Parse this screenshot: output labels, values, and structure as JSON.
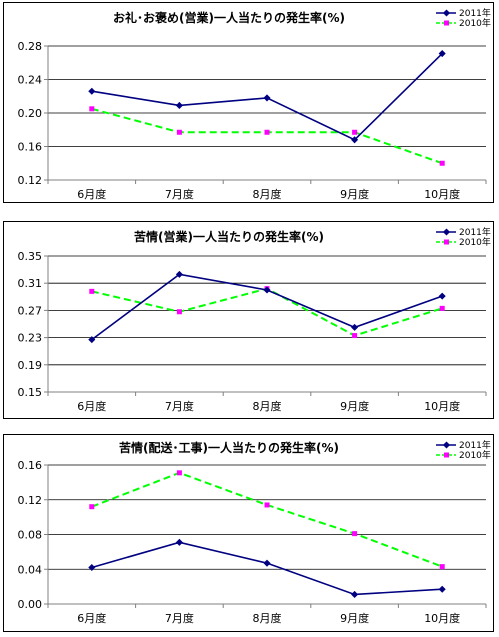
{
  "chart_data": [
    {
      "type": "line",
      "title": "お礼･お褒め(営業)一人当たりの発生率(%)",
      "categories": [
        "6月度",
        "7月度",
        "8月度",
        "9月度",
        "10月度"
      ],
      "ylim": [
        0.12,
        0.28
      ],
      "yticks": [
        "0.12",
        "0.16",
        "0.20",
        "0.24",
        "0.28"
      ],
      "ytick_values": [
        0.12,
        0.16,
        0.2,
        0.24,
        0.28
      ],
      "grid": true,
      "legend": "top-right",
      "series": [
        {
          "name": "2011年",
          "values": [
            0.226,
            0.209,
            0.218,
            0.168,
            0.271
          ],
          "color": "#000080",
          "style": "solid"
        },
        {
          "name": "2010年",
          "values": [
            0.205,
            0.177,
            0.177,
            0.177,
            0.14
          ],
          "color": "#00ff00",
          "marker_color": "#ff00ff",
          "style": "dashed"
        }
      ]
    },
    {
      "type": "line",
      "title": "苦情(営業)一人当たりの発生率(%)",
      "categories": [
        "6月度",
        "7月度",
        "8月度",
        "9月度",
        "10月度"
      ],
      "ylim": [
        0.15,
        0.35
      ],
      "yticks": [
        "0.15",
        "0.19",
        "0.23",
        "0.27",
        "0.31",
        "0.35"
      ],
      "ytick_values": [
        0.15,
        0.19,
        0.23,
        0.27,
        0.31,
        0.35
      ],
      "grid": true,
      "legend": "top-right",
      "series": [
        {
          "name": "2011年",
          "values": [
            0.227,
            0.323,
            0.3,
            0.245,
            0.291
          ],
          "color": "#000080",
          "style": "solid"
        },
        {
          "name": "2010年",
          "values": [
            0.298,
            0.268,
            0.302,
            0.233,
            0.273
          ],
          "color": "#00ff00",
          "marker_color": "#ff00ff",
          "style": "dashed"
        }
      ]
    },
    {
      "type": "line",
      "title": "苦情(配送･工事)一人当たりの発生率(%)",
      "categories": [
        "6月度",
        "7月度",
        "8月度",
        "9月度",
        "10月度"
      ],
      "ylim": [
        0.0,
        0.16
      ],
      "yticks": [
        "0.00",
        "0.04",
        "0.08",
        "0.12",
        "0.16"
      ],
      "ytick_values": [
        0.0,
        0.04,
        0.08,
        0.12,
        0.16
      ],
      "grid": true,
      "legend": "top-right",
      "series": [
        {
          "name": "2011年",
          "values": [
            0.042,
            0.071,
            0.047,
            0.011,
            0.017
          ],
          "color": "#000080",
          "style": "solid"
        },
        {
          "name": "2010年",
          "values": [
            0.112,
            0.151,
            0.114,
            0.081,
            0.043
          ],
          "color": "#00ff00",
          "marker_color": "#ff00ff",
          "style": "dashed"
        }
      ]
    }
  ]
}
